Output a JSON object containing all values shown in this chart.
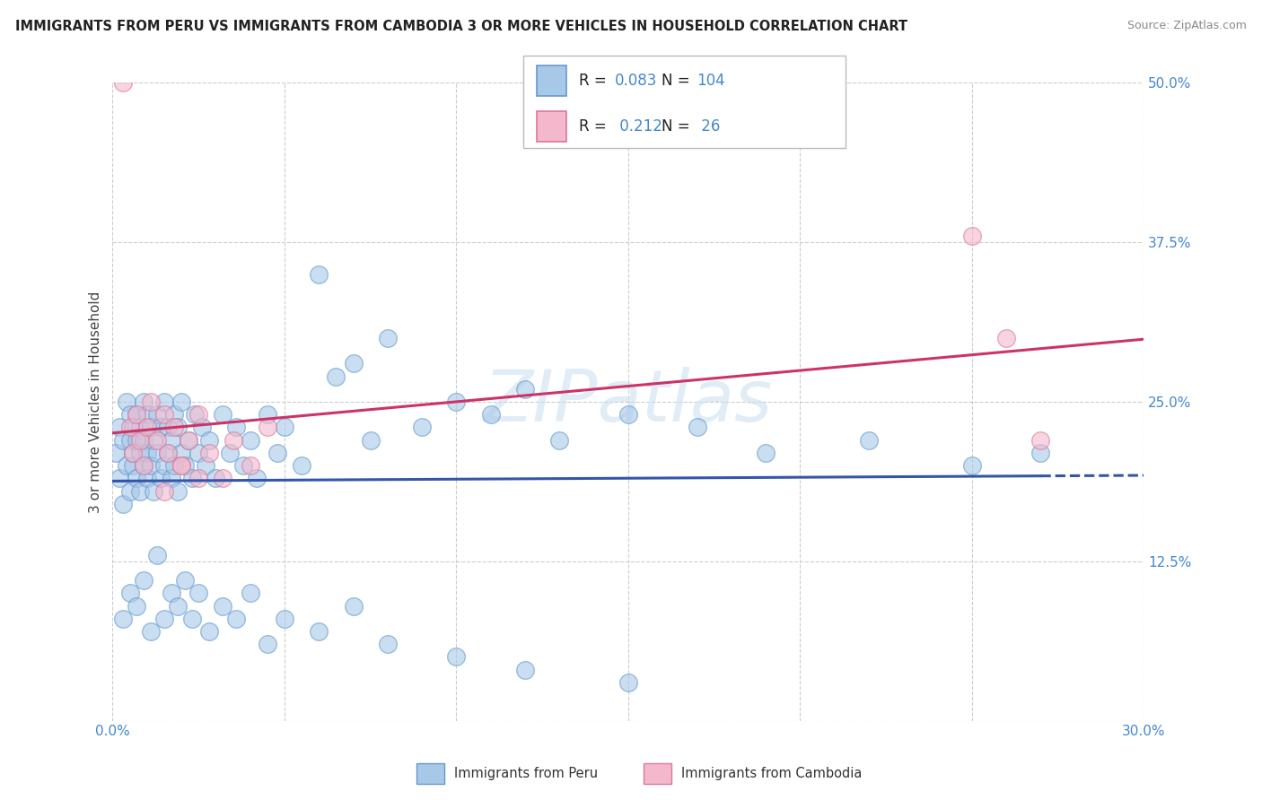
{
  "title": "IMMIGRANTS FROM PERU VS IMMIGRANTS FROM CAMBODIA 3 OR MORE VEHICLES IN HOUSEHOLD CORRELATION CHART",
  "source": "Source: ZipAtlas.com",
  "ylabel": "3 or more Vehicles in Household",
  "xlim": [
    0.0,
    0.3
  ],
  "ylim": [
    0.0,
    0.5
  ],
  "xticks": [
    0.0,
    0.05,
    0.1,
    0.15,
    0.2,
    0.25,
    0.3
  ],
  "xticklabels": [
    "0.0%",
    "",
    "",
    "",
    "",
    "",
    "30.0%"
  ],
  "yticks": [
    0.0,
    0.125,
    0.25,
    0.375,
    0.5
  ],
  "yticklabels": [
    "",
    "12.5%",
    "25.0%",
    "37.5%",
    "50.0%"
  ],
  "peru_color": "#a8c8e8",
  "peru_edge_color": "#6699cc",
  "cambodia_color": "#f4b8cc",
  "cambodia_edge_color": "#dd7799",
  "peru_line_color": "#3355aa",
  "cambodia_line_color": "#cc3366",
  "peru_R": 0.083,
  "peru_N": 104,
  "cambodia_R": 0.212,
  "cambodia_N": 26,
  "legend_labels": [
    "Immigrants from Peru",
    "Immigrants from Cambodia"
  ],
  "watermark": "ZIPatlas",
  "peru_x": [
    0.001,
    0.002,
    0.002,
    0.003,
    0.003,
    0.004,
    0.004,
    0.005,
    0.005,
    0.005,
    0.006,
    0.006,
    0.006,
    0.007,
    0.007,
    0.007,
    0.008,
    0.008,
    0.008,
    0.009,
    0.009,
    0.009,
    0.01,
    0.01,
    0.01,
    0.011,
    0.011,
    0.012,
    0.012,
    0.013,
    0.013,
    0.014,
    0.014,
    0.015,
    0.015,
    0.016,
    0.016,
    0.017,
    0.017,
    0.018,
    0.018,
    0.019,
    0.019,
    0.02,
    0.02,
    0.021,
    0.022,
    0.023,
    0.024,
    0.025,
    0.026,
    0.027,
    0.028,
    0.03,
    0.032,
    0.034,
    0.036,
    0.038,
    0.04,
    0.042,
    0.045,
    0.048,
    0.05,
    0.055,
    0.06,
    0.065,
    0.07,
    0.075,
    0.08,
    0.09,
    0.1,
    0.11,
    0.12,
    0.13,
    0.15,
    0.17,
    0.19,
    0.22,
    0.25,
    0.27,
    0.003,
    0.005,
    0.007,
    0.009,
    0.011,
    0.013,
    0.015,
    0.017,
    0.019,
    0.021,
    0.023,
    0.025,
    0.028,
    0.032,
    0.036,
    0.04,
    0.045,
    0.05,
    0.06,
    0.07,
    0.08,
    0.1,
    0.12,
    0.15
  ],
  "peru_y": [
    0.21,
    0.19,
    0.23,
    0.17,
    0.22,
    0.2,
    0.25,
    0.18,
    0.22,
    0.24,
    0.2,
    0.23,
    0.21,
    0.19,
    0.24,
    0.22,
    0.18,
    0.21,
    0.23,
    0.2,
    0.25,
    0.22,
    0.19,
    0.21,
    0.24,
    0.2,
    0.23,
    0.18,
    0.22,
    0.21,
    0.24,
    0.19,
    0.23,
    0.2,
    0.25,
    0.21,
    0.23,
    0.19,
    0.22,
    0.2,
    0.24,
    0.18,
    0.23,
    0.21,
    0.25,
    0.2,
    0.22,
    0.19,
    0.24,
    0.21,
    0.23,
    0.2,
    0.22,
    0.19,
    0.24,
    0.21,
    0.23,
    0.2,
    0.22,
    0.19,
    0.24,
    0.21,
    0.23,
    0.2,
    0.35,
    0.27,
    0.28,
    0.22,
    0.3,
    0.23,
    0.25,
    0.24,
    0.26,
    0.22,
    0.24,
    0.23,
    0.21,
    0.22,
    0.2,
    0.21,
    0.08,
    0.1,
    0.09,
    0.11,
    0.07,
    0.13,
    0.08,
    0.1,
    0.09,
    0.11,
    0.08,
    0.1,
    0.07,
    0.09,
    0.08,
    0.1,
    0.06,
    0.08,
    0.07,
    0.09,
    0.06,
    0.05,
    0.04,
    0.03
  ],
  "cambodia_x": [
    0.003,
    0.005,
    0.006,
    0.007,
    0.008,
    0.009,
    0.01,
    0.011,
    0.013,
    0.015,
    0.016,
    0.018,
    0.02,
    0.022,
    0.025,
    0.028,
    0.032,
    0.035,
    0.04,
    0.045,
    0.25,
    0.26,
    0.27,
    0.015,
    0.02,
    0.025
  ],
  "cambodia_y": [
    0.5,
    0.23,
    0.21,
    0.24,
    0.22,
    0.2,
    0.23,
    0.25,
    0.22,
    0.24,
    0.21,
    0.23,
    0.2,
    0.22,
    0.24,
    0.21,
    0.19,
    0.22,
    0.2,
    0.23,
    0.38,
    0.3,
    0.22,
    0.18,
    0.2,
    0.19
  ]
}
